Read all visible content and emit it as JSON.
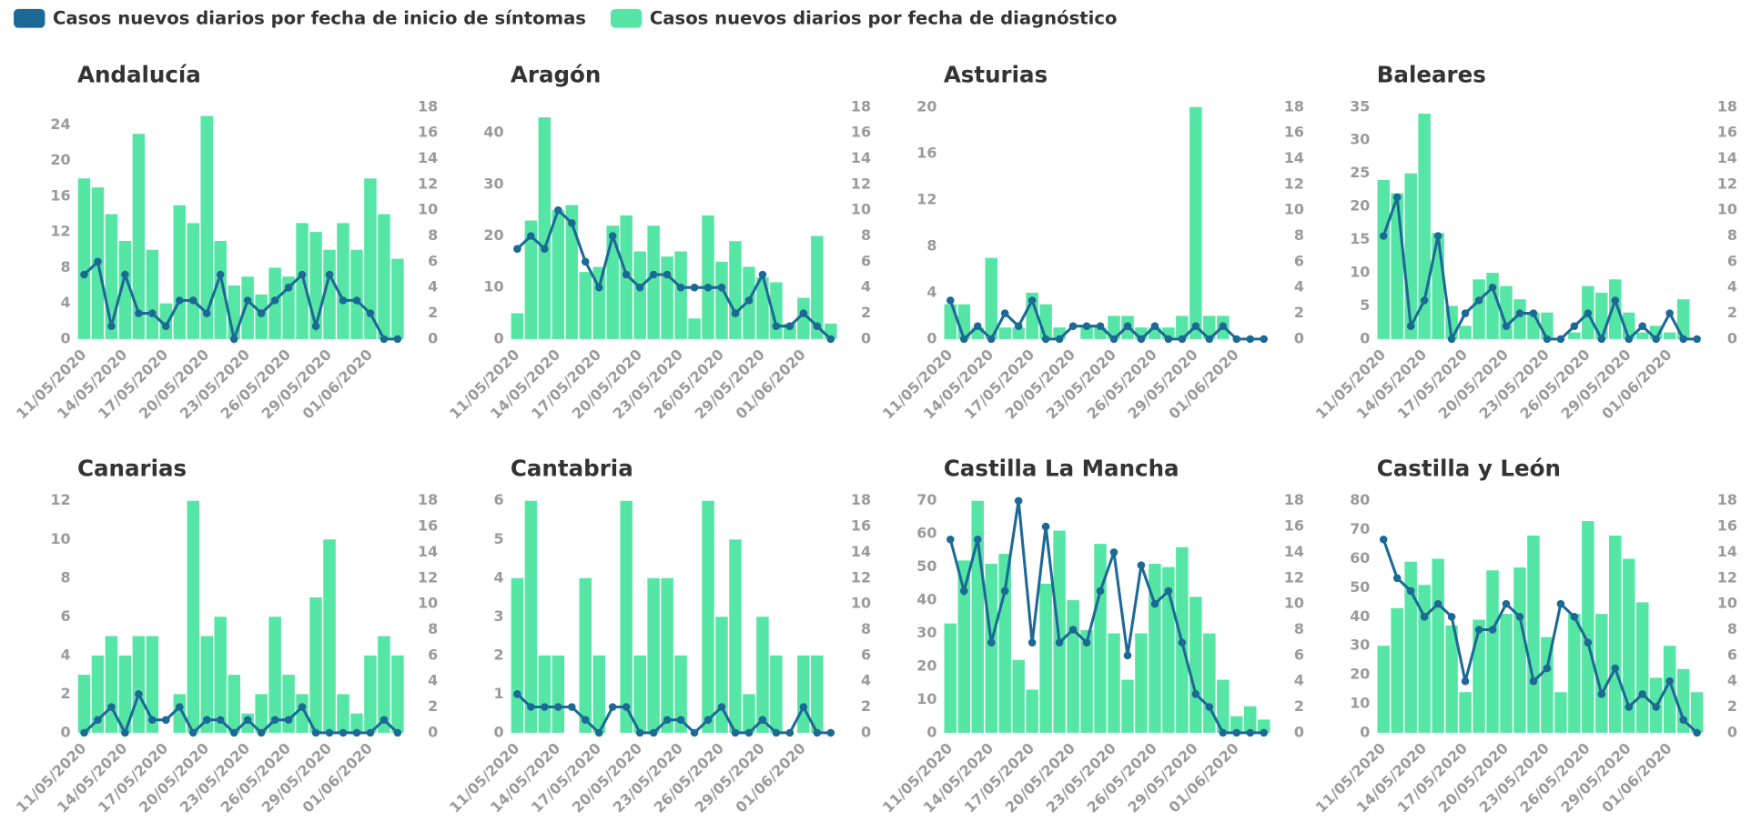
{
  "legend": [
    {
      "name": "Casos nuevos diarios por fecha de inicio de síntomas",
      "color": "#1d6996"
    },
    {
      "name": "Casos nuevos diarios por fecha de diagnóstico",
      "color": "#55e6a5"
    }
  ],
  "chart_data": [
    {
      "type": "combo",
      "title": "Andalucía",
      "categories": [
        "11/05/2020",
        null,
        null,
        "14/05/2020",
        null,
        null,
        "17/05/2020",
        null,
        null,
        "20/05/2020",
        null,
        null,
        "23/05/2020",
        null,
        null,
        "26/05/2020",
        null,
        null,
        "29/05/2020",
        null,
        null,
        "01/06/2020",
        null,
        null
      ],
      "series": [
        {
          "color": "#55e6a5",
          "values": [
            18,
            17,
            14,
            11,
            23,
            10,
            4,
            15,
            13,
            25,
            11,
            6,
            7,
            5,
            8,
            7,
            13,
            12,
            10,
            13,
            10,
            18,
            14,
            9
          ]
        },
        {
          "color": "#1d6996",
          "axis": "y2",
          "values": [
            5,
            6,
            1,
            5,
            2,
            2,
            1,
            3,
            3,
            2,
            5,
            0,
            3,
            2,
            3,
            4,
            5,
            1,
            5,
            3,
            3,
            2,
            0,
            0
          ]
        }
      ],
      "ylim": [
        0,
        26
      ],
      "yticks": [
        0,
        4,
        8,
        12,
        16,
        20,
        24
      ],
      "y2lim": [
        0,
        18
      ],
      "y2ticks": [
        0,
        2,
        4,
        6,
        8,
        10,
        12,
        14,
        16,
        18
      ]
    },
    {
      "type": "combo",
      "title": "Aragón",
      "categories": [
        "11/05/2020",
        null,
        null,
        "14/05/2020",
        null,
        null,
        "17/05/2020",
        null,
        null,
        "20/05/2020",
        null,
        null,
        "23/05/2020",
        null,
        null,
        "26/05/2020",
        null,
        null,
        "29/05/2020",
        null,
        null,
        "01/06/2020",
        null,
        null
      ],
      "series": [
        {
          "color": "#55e6a5",
          "values": [
            5,
            23,
            43,
            25,
            26,
            13,
            14,
            22,
            24,
            17,
            22,
            16,
            17,
            4,
            24,
            15,
            19,
            14,
            12,
            11,
            3,
            8,
            20,
            3
          ]
        },
        {
          "color": "#1d6996",
          "axis": "y2",
          "values": [
            7,
            8,
            7,
            10,
            9,
            6,
            4,
            8,
            5,
            4,
            5,
            5,
            4,
            4,
            4,
            4,
            2,
            3,
            5,
            1,
            1,
            2,
            1,
            0
          ]
        }
      ],
      "ylim": [
        0,
        45
      ],
      "yticks": [
        0,
        10,
        20,
        30,
        40
      ],
      "y2lim": [
        0,
        18
      ],
      "y2ticks": [
        0,
        2,
        4,
        6,
        8,
        10,
        12,
        14,
        16,
        18
      ]
    },
    {
      "type": "combo",
      "title": "Asturias",
      "categories": [
        "11/05/2020",
        null,
        null,
        "14/05/2020",
        null,
        null,
        "17/05/2020",
        null,
        null,
        "20/05/2020",
        null,
        null,
        "23/05/2020",
        null,
        null,
        "26/05/2020",
        null,
        null,
        "29/05/2020",
        null,
        null,
        "01/06/2020",
        null,
        null
      ],
      "series": [
        {
          "color": "#55e6a5",
          "values": [
            3,
            3,
            1,
            7,
            1,
            1,
            4,
            3,
            1,
            0,
            1,
            1,
            2,
            2,
            1,
            1,
            1,
            2,
            20,
            2,
            2,
            0,
            0,
            0
          ]
        },
        {
          "color": "#1d6996",
          "axis": "y2",
          "values": [
            3,
            0,
            1,
            0,
            2,
            1,
            3,
            0,
            0,
            1,
            1,
            1,
            0,
            1,
            0,
            1,
            0,
            0,
            1,
            0,
            1,
            0,
            0,
            0
          ]
        }
      ],
      "ylim": [
        0,
        20
      ],
      "yticks": [
        0,
        4,
        8,
        12,
        16,
        20
      ],
      "y2lim": [
        0,
        18
      ],
      "y2ticks": [
        0,
        2,
        4,
        6,
        8,
        10,
        12,
        14,
        16,
        18
      ]
    },
    {
      "type": "combo",
      "title": "Baleares",
      "categories": [
        "11/05/2020",
        null,
        null,
        "14/05/2020",
        null,
        null,
        "17/05/2020",
        null,
        null,
        "20/05/2020",
        null,
        null,
        "23/05/2020",
        null,
        null,
        "26/05/2020",
        null,
        null,
        "29/05/2020",
        null,
        null,
        "01/06/2020",
        null,
        null
      ],
      "series": [
        {
          "color": "#55e6a5",
          "values": [
            24,
            22,
            25,
            34,
            16,
            5,
            2,
            9,
            10,
            8,
            6,
            4,
            4,
            0,
            1,
            8,
            7,
            9,
            4,
            1,
            2,
            1,
            6,
            0
          ]
        },
        {
          "color": "#1d6996",
          "axis": "y2",
          "values": [
            8,
            11,
            1,
            3,
            8,
            0,
            2,
            3,
            4,
            1,
            2,
            2,
            0,
            0,
            1,
            2,
            0,
            3,
            0,
            1,
            0,
            2,
            0,
            0
          ]
        }
      ],
      "ylim": [
        0,
        35
      ],
      "yticks": [
        0,
        5,
        10,
        15,
        20,
        25,
        30,
        35
      ],
      "y2lim": [
        0,
        18
      ],
      "y2ticks": [
        0,
        2,
        4,
        6,
        8,
        10,
        12,
        14,
        16,
        18
      ]
    },
    {
      "type": "combo",
      "title": "Canarias",
      "categories": [
        "11/05/2020",
        null,
        null,
        "14/05/2020",
        null,
        null,
        "17/05/2020",
        null,
        null,
        "20/05/2020",
        null,
        null,
        "23/05/2020",
        null,
        null,
        "26/05/2020",
        null,
        null,
        "29/05/2020",
        null,
        null,
        "01/06/2020",
        null,
        null
      ],
      "series": [
        {
          "color": "#55e6a5",
          "values": [
            3,
            4,
            5,
            4,
            5,
            5,
            0,
            2,
            12,
            5,
            6,
            3,
            1,
            2,
            6,
            3,
            2,
            7,
            10,
            2,
            1,
            4,
            5,
            4
          ]
        },
        {
          "color": "#1d6996",
          "axis": "y2",
          "values": [
            0,
            1,
            2,
            0,
            3,
            1,
            1,
            2,
            0,
            1,
            1,
            0,
            1,
            0,
            1,
            1,
            2,
            0,
            0,
            0,
            0,
            0,
            1,
            0
          ]
        }
      ],
      "ylim": [
        0,
        12
      ],
      "yticks": [
        0,
        2,
        4,
        6,
        8,
        10,
        12
      ],
      "y2lim": [
        0,
        18
      ],
      "y2ticks": [
        0,
        2,
        4,
        6,
        8,
        10,
        12,
        14,
        16,
        18
      ]
    },
    {
      "type": "combo",
      "title": "Cantabria",
      "categories": [
        "11/05/2020",
        null,
        null,
        "14/05/2020",
        null,
        null,
        "17/05/2020",
        null,
        null,
        "20/05/2020",
        null,
        null,
        "23/05/2020",
        null,
        null,
        "26/05/2020",
        null,
        null,
        "29/05/2020",
        null,
        null,
        "01/06/2020",
        null,
        null
      ],
      "series": [
        {
          "color": "#55e6a5",
          "values": [
            4,
            6,
            2,
            2,
            0,
            4,
            2,
            0,
            6,
            2,
            4,
            4,
            2,
            0,
            6,
            3,
            5,
            1,
            3,
            2,
            0,
            2,
            2,
            0
          ]
        },
        {
          "color": "#1d6996",
          "axis": "y2",
          "values": [
            3,
            2,
            2,
            2,
            2,
            1,
            0,
            2,
            2,
            0,
            0,
            1,
            1,
            0,
            1,
            2,
            0,
            0,
            1,
            0,
            0,
            2,
            0,
            0
          ]
        }
      ],
      "ylim": [
        0,
        6
      ],
      "yticks": [
        0,
        1,
        2,
        3,
        4,
        5,
        6
      ],
      "y2lim": [
        0,
        18
      ],
      "y2ticks": [
        0,
        2,
        4,
        6,
        8,
        10,
        12,
        14,
        16,
        18
      ]
    },
    {
      "type": "combo",
      "title": "Castilla La Mancha",
      "categories": [
        "11/05/2020",
        null,
        null,
        "14/05/2020",
        null,
        null,
        "17/05/2020",
        null,
        null,
        "20/05/2020",
        null,
        null,
        "23/05/2020",
        null,
        null,
        "26/05/2020",
        null,
        null,
        "29/05/2020",
        null,
        null,
        "01/06/2020",
        null,
        null
      ],
      "series": [
        {
          "color": "#55e6a5",
          "values": [
            33,
            52,
            70,
            51,
            54,
            22,
            13,
            45,
            61,
            40,
            31,
            57,
            30,
            16,
            30,
            51,
            50,
            56,
            41,
            30,
            16,
            5,
            8,
            4
          ]
        },
        {
          "color": "#1d6996",
          "axis": "y2",
          "values": [
            15,
            11,
            15,
            7,
            11,
            18,
            7,
            16,
            7,
            8,
            7,
            11,
            14,
            6,
            13,
            10,
            11,
            7,
            3,
            2,
            0,
            0,
            0,
            0
          ]
        }
      ],
      "ylim": [
        0,
        70
      ],
      "yticks": [
        0,
        10,
        20,
        30,
        40,
        50,
        60,
        70
      ],
      "y2lim": [
        0,
        18
      ],
      "y2ticks": [
        0,
        2,
        4,
        6,
        8,
        10,
        12,
        14,
        16,
        18
      ]
    },
    {
      "type": "combo",
      "title": "Castilla y León",
      "categories": [
        "11/05/2020",
        null,
        null,
        "14/05/2020",
        null,
        null,
        "17/05/2020",
        null,
        null,
        "20/05/2020",
        null,
        null,
        "23/05/2020",
        null,
        null,
        "26/05/2020",
        null,
        null,
        "29/05/2020",
        null,
        null,
        "01/06/2020",
        null,
        null
      ],
      "series": [
        {
          "color": "#55e6a5",
          "values": [
            30,
            43,
            59,
            51,
            60,
            37,
            14,
            39,
            56,
            41,
            57,
            68,
            33,
            14,
            41,
            73,
            41,
            68,
            60,
            45,
            19,
            30,
            22,
            14
          ]
        },
        {
          "color": "#1d6996",
          "axis": "y2",
          "values": [
            15,
            12,
            11,
            9,
            10,
            9,
            4,
            8,
            8,
            10,
            9,
            4,
            5,
            10,
            9,
            7,
            3,
            5,
            2,
            3,
            2,
            4,
            1,
            0
          ]
        }
      ],
      "ylim": [
        0,
        80
      ],
      "yticks": [
        0,
        10,
        20,
        30,
        40,
        50,
        60,
        70,
        80
      ],
      "y2lim": [
        0,
        18
      ],
      "y2ticks": [
        0,
        2,
        4,
        6,
        8,
        10,
        12,
        14,
        16,
        18
      ]
    }
  ]
}
